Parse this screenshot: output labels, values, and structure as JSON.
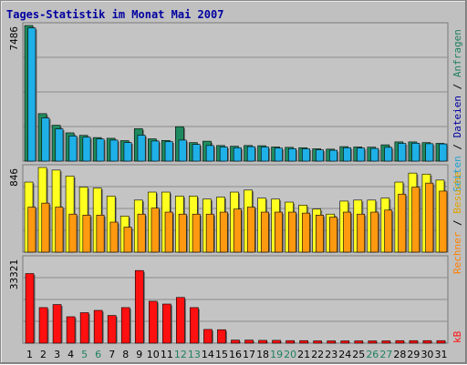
{
  "title": "Tages-Statistik im Monat Mai 2007",
  "colors": {
    "background": "#c0c0c0",
    "panel": "#c4c4c4",
    "grid": "#8c8c8c",
    "title": "#0000a0",
    "hits": "#1f8a5f",
    "files": "#1fb0e8",
    "pages": "#ffff20",
    "visits": "#ff9910",
    "kb": "#ff1010",
    "weekday_label": "#000000",
    "weekend_label": "#208060",
    "label_anfragen": "#208060",
    "label_dateien": "#0000a0",
    "label_seiten": "#20a0d0",
    "label_besuche": "#e0a000",
    "label_rechner": "#ff8000",
    "label_kb": "#ff1010"
  },
  "chart_data": {
    "type": "bar",
    "title": "Tages-Statistik im Monat Mai 2007",
    "categories": [
      "1",
      "2",
      "3",
      "4",
      "5",
      "6",
      "7",
      "8",
      "9",
      "10",
      "11",
      "12",
      "13",
      "14",
      "15",
      "16",
      "17",
      "18",
      "19",
      "20",
      "21",
      "22",
      "23",
      "24",
      "25",
      "26",
      "27",
      "28",
      "29",
      "30",
      "31"
    ],
    "weekend_days": [
      "5",
      "6",
      "12",
      "13",
      "19",
      "20",
      "26",
      "27"
    ],
    "grid": true,
    "panels": [
      {
        "name": "top",
        "ymax_label": "7486",
        "ymax": 7486,
        "right_labels": [
          "Anfragen",
          "Dateien",
          "Seiten"
        ],
        "series": [
          {
            "name": "Anfragen",
            "color": "#1f8a5f",
            "values": [
              7486,
              2620,
              1980,
              1560,
              1420,
              1300,
              1260,
              1130,
              1790,
              1230,
              1140,
              1900,
              1020,
              1100,
              860,
              820,
              860,
              850,
              780,
              760,
              740,
              680,
              660,
              800,
              780,
              770,
              900,
              1060,
              1060,
              1020,
              980
            ]
          },
          {
            "name": "Dateien",
            "color": "#1fb0e8",
            "values": [
              7350,
              2380,
              1780,
              1390,
              1320,
              1220,
              1160,
              1020,
              1430,
              1110,
              1080,
              1160,
              920,
              860,
              780,
              740,
              800,
              780,
              720,
              690,
              680,
              620,
              600,
              740,
              720,
              700,
              760,
              980,
              990,
              960,
              950
            ]
          }
        ]
      },
      {
        "name": "middle",
        "ymax_label": "846",
        "ymax": 846,
        "right_labels": [
          "Rechner",
          "Besuche"
        ],
        "series": [
          {
            "name": "Seiten",
            "color": "#ffff20",
            "values": [
              700,
              846,
              820,
              760,
              650,
              640,
              560,
              360,
              520,
              600,
              600,
              560,
              560,
              530,
              550,
              600,
              620,
              540,
              530,
              500,
              470,
              430,
              380,
              510,
              520,
              520,
              540,
              700,
              790,
              780,
              720
            ]
          },
          {
            "name": "Besuche",
            "color": "#ff9910",
            "values": [
              450,
              490,
              450,
              380,
              370,
              370,
              300,
              250,
              380,
              440,
              400,
              380,
              380,
              380,
              400,
              430,
              450,
              400,
              400,
              400,
              390,
              370,
              350,
              400,
              380,
              400,
              420,
              580,
              650,
              690,
              610
            ]
          }
        ]
      },
      {
        "name": "bottom",
        "ymax_label": "33321",
        "ymax": 33321,
        "right_labels": [
          "kB"
        ],
        "series": [
          {
            "name": "kB",
            "color": "#ff1010",
            "values": [
              27400,
              14000,
              15200,
              10400,
              12000,
              12900,
              10900,
              14000,
              28600,
              16500,
              15400,
              18000,
              14000,
              5400,
              5300,
              1200,
              1200,
              1100,
              1100,
              1000,
              1000,
              900,
              900,
              900,
              900,
              900,
              900,
              1000,
              1000,
              1000,
              1000
            ]
          }
        ]
      }
    ]
  }
}
